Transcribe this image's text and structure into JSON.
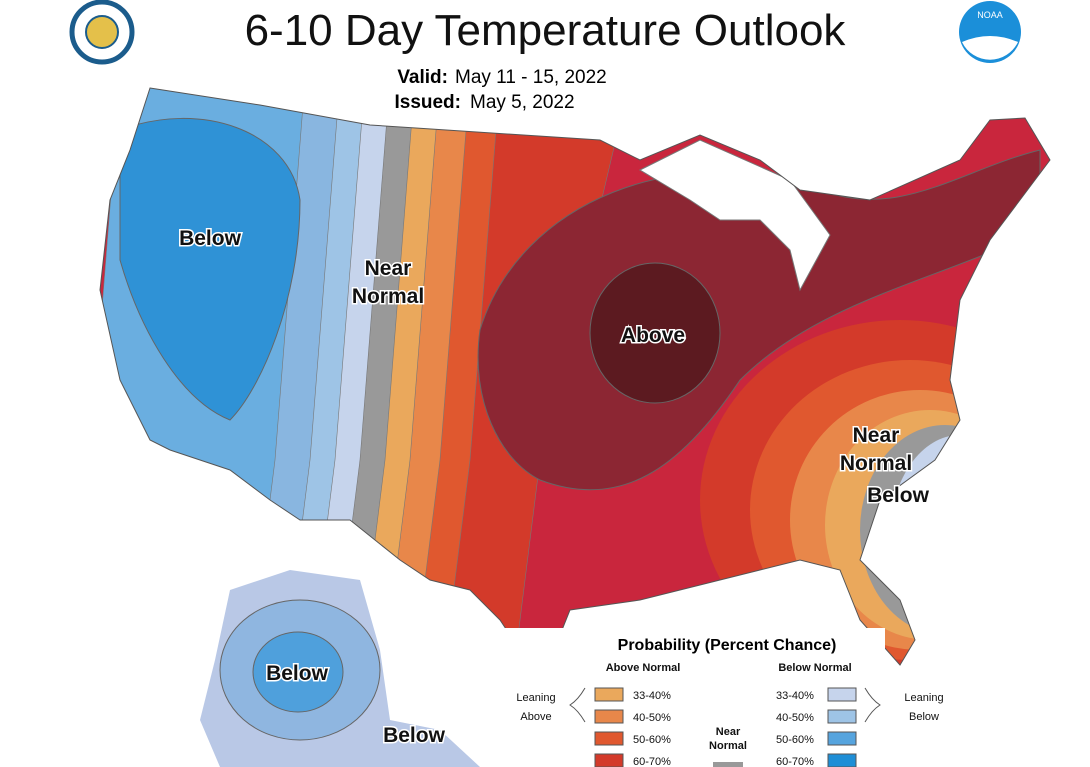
{
  "header": {
    "title": "6-10 Day Temperature Outlook",
    "valid_label": "Valid:",
    "valid": "May 11 - 15, 2022",
    "issued_label": "Issued:",
    "issued": "May 5, 2022",
    "noaa": "NOAA"
  },
  "map_labels": [
    [
      "Below"
    ],
    [
      "Near",
      "Normal"
    ],
    [
      "Above"
    ],
    [
      "Near",
      "Normal"
    ],
    [
      "Below"
    ],
    [
      "Below"
    ],
    [
      "Below"
    ]
  ],
  "legend": {
    "title": "Probability (Percent Chance)",
    "above_heading": "Above Normal",
    "below_heading": "Below Normal",
    "above": [
      "33-40%",
      "40-50%",
      "50-60%",
      "60-70%"
    ],
    "below": [
      "33-40%",
      "40-50%",
      "50-60%",
      "60-70%"
    ],
    "leaning_above": [
      "Leaning",
      "Above"
    ],
    "leaning_below": [
      "Leaning",
      "Below"
    ],
    "near_normal": [
      "Near",
      "Normal"
    ]
  }
}
